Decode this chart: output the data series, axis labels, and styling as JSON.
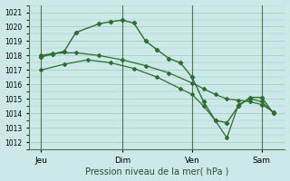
{
  "xlabel": "Pression niveau de la mer( hPa )",
  "bg_color": "#cce8e8",
  "grid_color": "#99ccbb",
  "line_color": "#2d6e2d",
  "vline_color": "#4a7a4a",
  "ylim": [
    1011.5,
    1021.5
  ],
  "yticks": [
    1012,
    1013,
    1014,
    1015,
    1016,
    1017,
    1018,
    1019,
    1020,
    1021
  ],
  "xlim": [
    -0.5,
    10.5
  ],
  "day_labels": [
    "Jeu",
    "Dim",
    "Ven",
    "Sam"
  ],
  "day_positions": [
    0,
    3.5,
    6.5,
    9.5
  ],
  "line1_x": [
    0,
    0.5,
    1.0,
    1.5,
    2.5,
    3.0,
    3.5,
    4.0,
    4.5,
    5.0,
    5.5,
    6.0,
    6.5,
    7.0,
    7.5,
    8.0,
    8.5,
    9.0,
    9.5,
    10.0
  ],
  "line1_y": [
    1017.9,
    1018.1,
    1018.3,
    1019.6,
    1020.2,
    1020.35,
    1020.45,
    1020.25,
    1019.0,
    1018.4,
    1017.8,
    1017.5,
    1016.5,
    1014.8,
    1013.5,
    1013.35,
    1014.5,
    1015.1,
    1015.1,
    1014.0
  ],
  "line2_x": [
    0,
    0.5,
    1.5,
    2.5,
    3.5,
    4.5,
    5.5,
    6.5,
    7.0,
    7.5,
    8.0,
    8.5,
    9.0,
    9.5,
    10.0
  ],
  "line2_y": [
    1018.0,
    1018.15,
    1018.2,
    1018.0,
    1017.7,
    1017.3,
    1016.8,
    1016.1,
    1015.7,
    1015.3,
    1015.0,
    1014.9,
    1014.8,
    1014.6,
    1014.1
  ],
  "line3_x": [
    0,
    1.0,
    2.0,
    3.0,
    4.0,
    5.0,
    6.0,
    6.5,
    7.0,
    7.5,
    8.0,
    8.5,
    9.0,
    9.5,
    10.0
  ],
  "line3_y": [
    1017.0,
    1017.4,
    1017.7,
    1017.5,
    1017.1,
    1016.5,
    1015.7,
    1015.3,
    1014.5,
    1013.5,
    1012.3,
    1014.6,
    1015.0,
    1014.8,
    1014.05
  ]
}
